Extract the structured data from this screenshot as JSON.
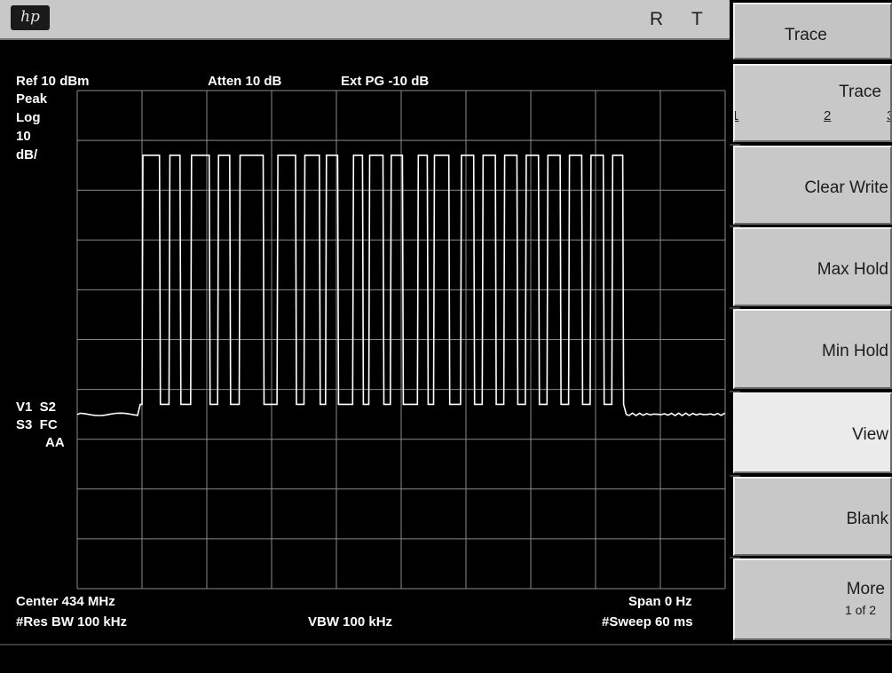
{
  "header": {
    "logo": "hp",
    "indicators": [
      "R",
      "T"
    ]
  },
  "annotations": {
    "ref_level": "Ref 10 dBm",
    "atten": "Atten 10 dB",
    "ext_pg": "Ext PG -10 dB",
    "detector": "Peak",
    "scale_type": "Log",
    "scale_value": "10",
    "scale_unit": "dB/",
    "status_row1": "V1  S2",
    "status_row2": "S3  FC",
    "status_row3": "AA",
    "center": "Center 434 MHz",
    "span": "Span 0 Hz",
    "res_bw": "#Res BW 100 kHz",
    "vbw": "VBW 100 kHz",
    "sweep": "#Sweep 60 ms"
  },
  "softkeys": {
    "menu_title": "Trace",
    "trace_select": {
      "label": "Trace",
      "options": [
        "1",
        "2",
        "3"
      ]
    },
    "clear_write": "Clear Write",
    "max_hold": "Max Hold",
    "min_hold": "Min Hold",
    "view": "View",
    "blank": "Blank",
    "more": "More",
    "more_page": "1 of 2"
  },
  "colors": {
    "screen_bg": "#000000",
    "trace": "#ffffff",
    "graticule": "#8a8a8a",
    "softkey_bg": "#c8c8c8",
    "softkey_active": "#ebebeb"
  },
  "chart_data": {
    "type": "line",
    "x_unit": "ms",
    "xlim": [
      0,
      60
    ],
    "ylim": [
      -90,
      10
    ],
    "y_unit": "dBm",
    "levels": {
      "high": -3,
      "low": -53,
      "noise": -55
    },
    "burst_start_ms": 6.0,
    "burst_end_ms": 50.6,
    "pulses": [
      [
        6.0,
        7.7
      ],
      [
        8.5,
        9.6
      ],
      [
        10.5,
        12.3
      ],
      [
        13.0,
        14.2
      ],
      [
        15.0,
        17.3
      ],
      [
        18.5,
        20.3
      ],
      [
        21.0,
        22.5
      ],
      [
        23.0,
        24.2
      ],
      [
        25.5,
        26.5
      ],
      [
        27.0,
        28.4
      ],
      [
        29.0,
        30.2
      ],
      [
        31.5,
        32.5
      ],
      [
        33.0,
        34.5
      ],
      [
        35.5,
        36.8
      ],
      [
        37.5,
        38.8
      ],
      [
        39.5,
        40.8
      ],
      [
        41.5,
        42.8
      ],
      [
        43.5,
        44.8
      ],
      [
        45.5,
        46.8
      ],
      [
        47.5,
        48.8
      ],
      [
        49.5,
        50.6
      ]
    ]
  }
}
